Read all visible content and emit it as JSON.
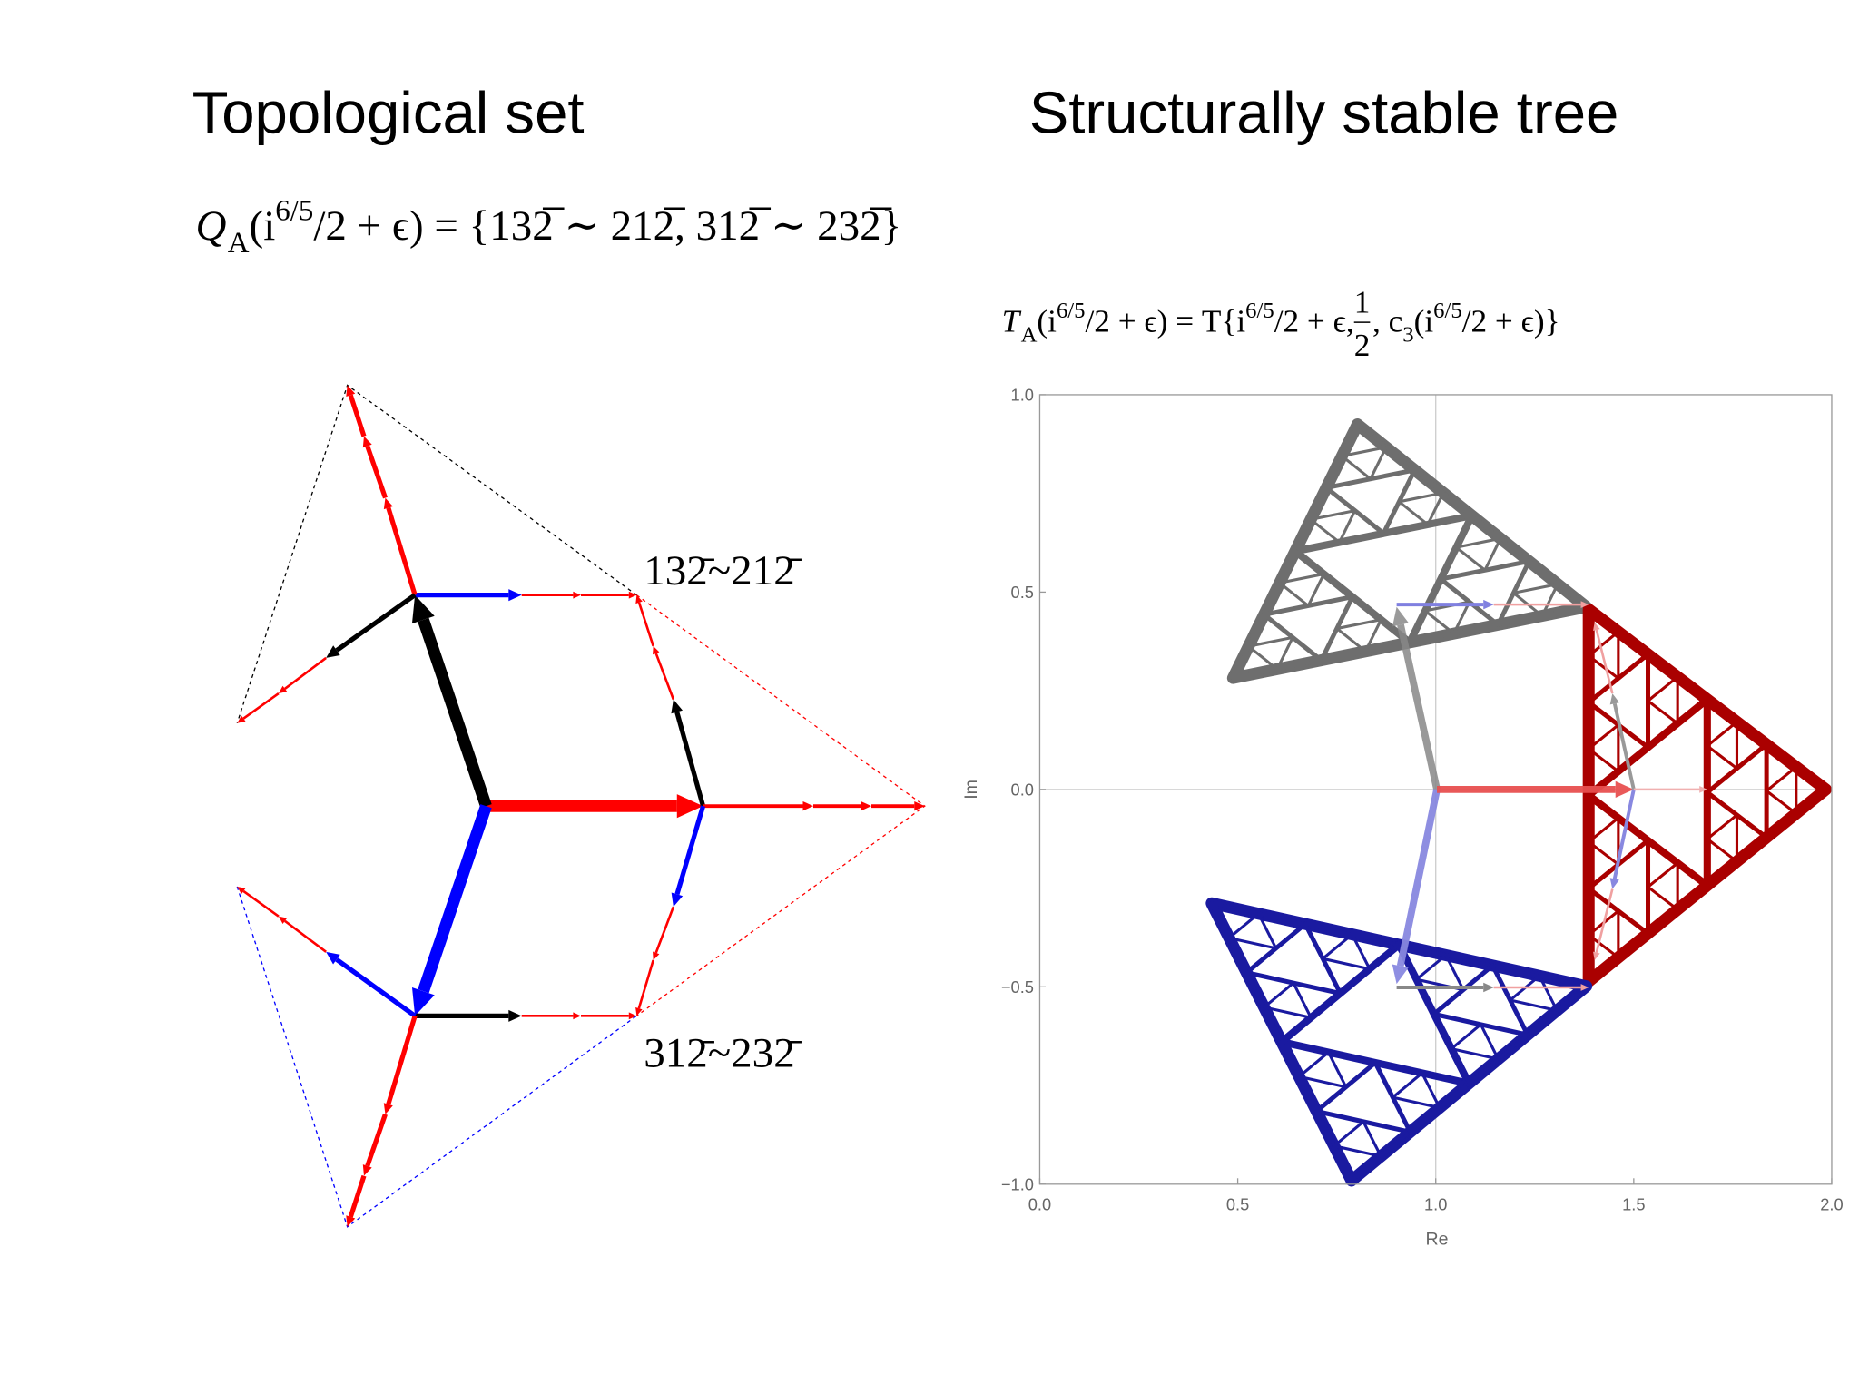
{
  "titles": {
    "left": "Topological set",
    "right": "Structurally stable tree"
  },
  "formula_left": [
    "Q",
    "A",
    "(i",
    "6/5",
    "/2 + ϵ) = {132̅ ∼ 212̅, 312̅ ∼ 232̅}"
  ],
  "formula_right": [
    "T",
    "A",
    "(i",
    "6/5",
    "/2 + ϵ) = T{i",
    "6/5",
    "/2 + ϵ, ",
    "1",
    "2",
    ", c",
    "3",
    "(i",
    "6/5",
    "/2 + ϵ)}"
  ],
  "diagram_labels": [
    "132̄~212̄",
    "312̄~232̄"
  ],
  "plot": {
    "xlabel": "Re",
    "ylabel": "Im",
    "xlim": [
      0,
      2
    ],
    "ylim": [
      -1,
      1
    ],
    "xticks": [
      {
        "value": 0,
        "label": "0.0"
      },
      {
        "value": 0.5,
        "label": "0.5"
      },
      {
        "value": 1,
        "label": "1.0"
      },
      {
        "value": 1.5,
        "label": "1.5"
      },
      {
        "value": 2,
        "label": "2.0"
      }
    ],
    "yticks": [
      {
        "value": -1,
        "label": "−1.0"
      },
      {
        "value": -0.5,
        "label": "−0.5"
      },
      {
        "value": 0,
        "label": "0.0"
      },
      {
        "value": 0.5,
        "label": "0.5"
      },
      {
        "value": 1,
        "label": "1.0"
      }
    ],
    "gridlines": {
      "x": [
        1
      ],
      "y": [
        0
      ]
    }
  }
}
